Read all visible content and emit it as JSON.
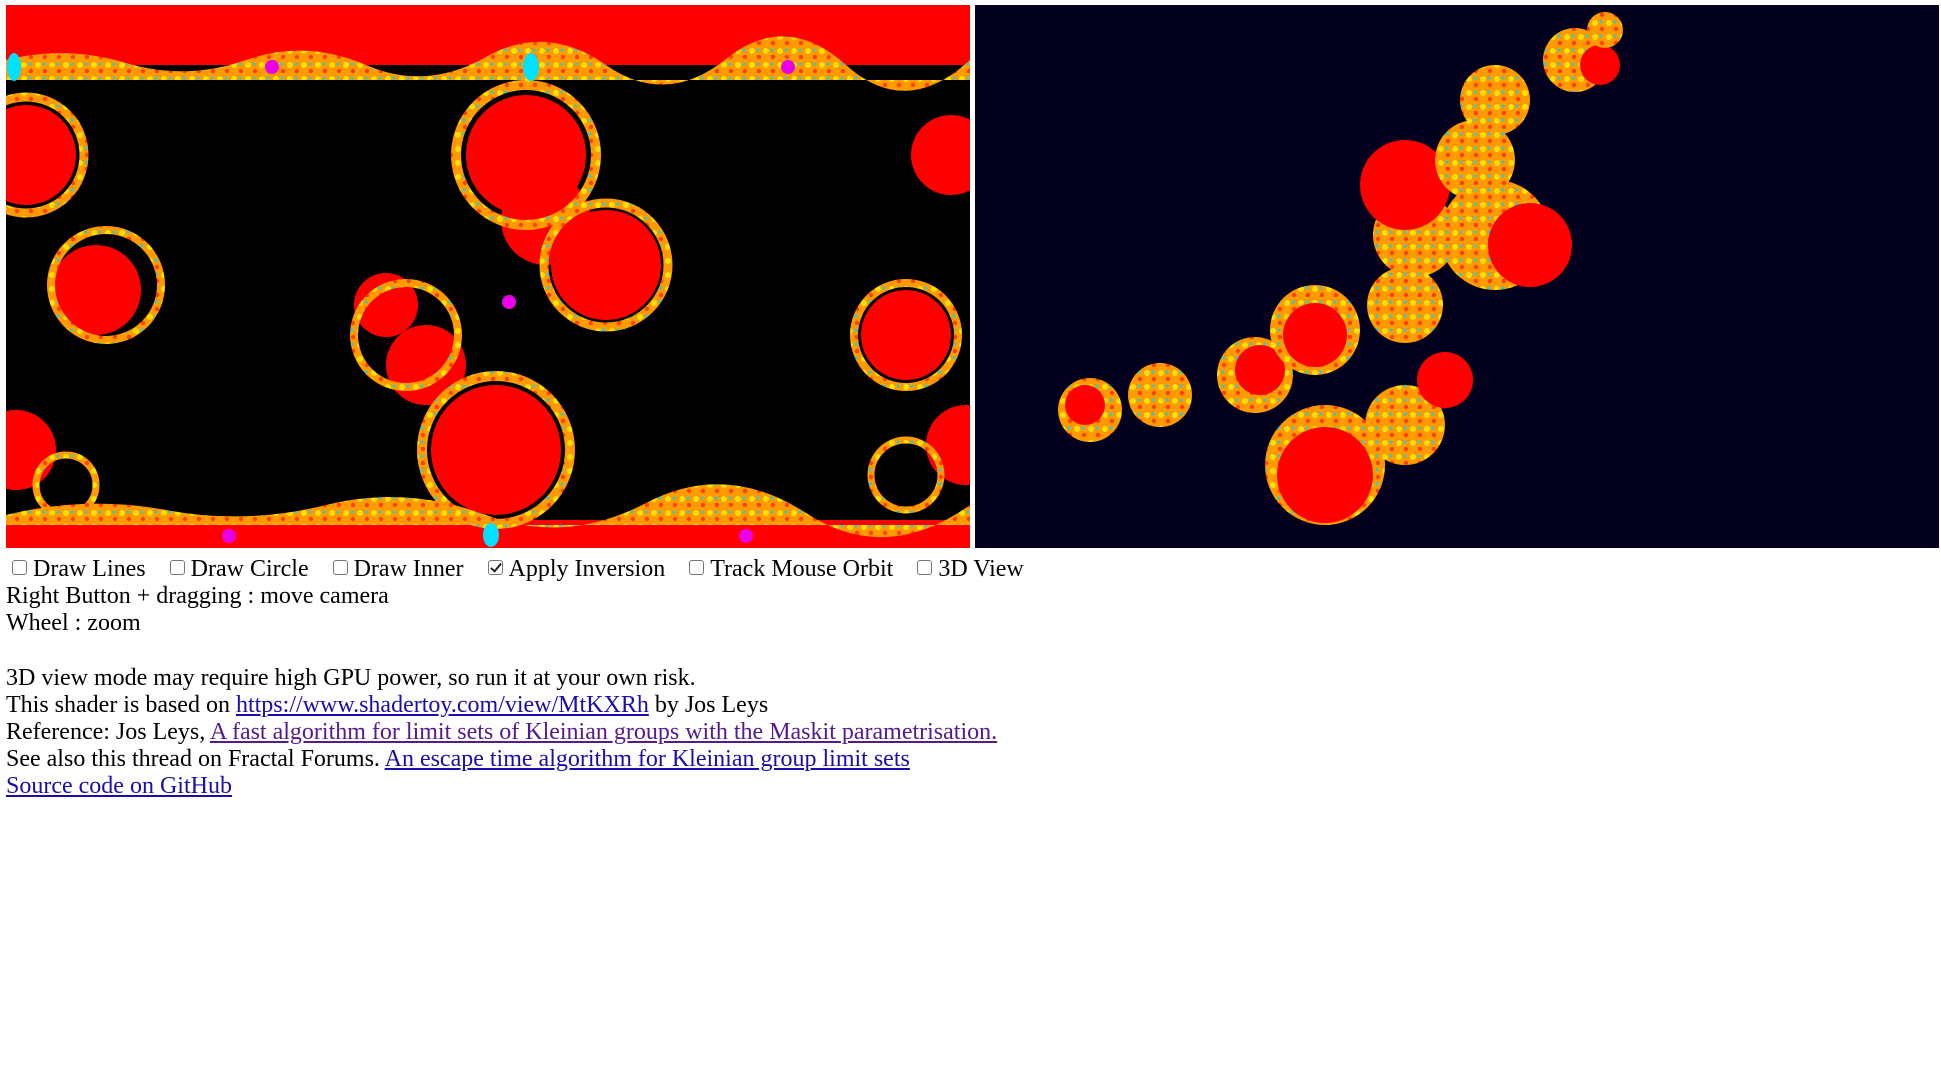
{
  "controls": [
    {
      "label": "Draw Lines",
      "checked": false
    },
    {
      "label": "Draw Circle",
      "checked": false
    },
    {
      "label": "Draw Inner",
      "checked": false
    },
    {
      "label": "Apply Inversion",
      "checked": true
    },
    {
      "label": "Track Mouse Orbit",
      "checked": false
    },
    {
      "label": "3D View",
      "checked": false
    }
  ],
  "help": {
    "camera": "Right Button + dragging : move camera",
    "zoom": "Wheel : zoom"
  },
  "info": {
    "gpu_warning": "3D view mode may require high GPU power, so run it at your own risk.",
    "based_prefix": "This shader is based on ",
    "based_link": "https://www.shadertoy.com/view/MtKXRh",
    "based_suffix": " by Jos Leys",
    "ref_prefix": "Reference: Jos Leys, ",
    "ref_link": "A fast algorithm for limit sets of Kleinian groups with the Maskit parametrisation.",
    "forum_prefix": "See also this thread on Fractal Forums. ",
    "forum_link": "An escape time algorithm for Kleinian group limit sets",
    "github_link": "Source code on GitHub"
  },
  "colors": {
    "fractal_red": "#ff0000",
    "fractal_orange": "#ff9a00",
    "fractal_yellow": "#ffe000",
    "fractal_cyan": "#00e0ff",
    "marker_magenta": "#e800e8",
    "left_bg": "#000000",
    "right_bg": "#02001c",
    "link": "#1a0dab",
    "link_visited": "#551a8b"
  }
}
